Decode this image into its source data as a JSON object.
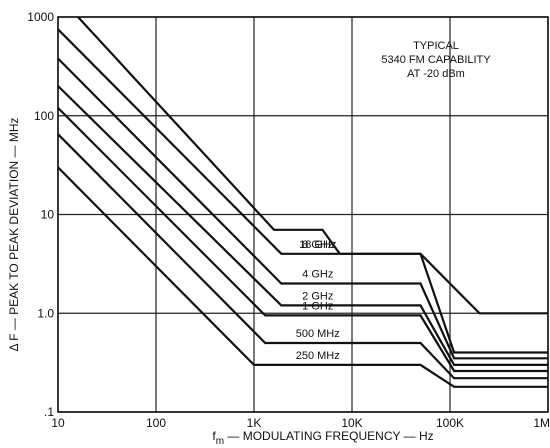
{
  "chart_data": {
    "type": "line",
    "xlabel": "f",
    "xlabel_sub": "m",
    "xlabel_rest": " — MODULATING FREQUENCY — Hz",
    "ylabel": "Δ F — PEAK TO PEAK DEVIATION — MHz",
    "x_scale": "log",
    "y_scale": "log",
    "xlim": [
      10,
      1000000
    ],
    "ylim": [
      0.1,
      1000
    ],
    "grid": true,
    "x_ticks": [
      {
        "value": 10,
        "label": "10"
      },
      {
        "value": 100,
        "label": "100"
      },
      {
        "value": 1000,
        "label": "1K"
      },
      {
        "value": 10000,
        "label": "10K"
      },
      {
        "value": 100000,
        "label": "100K"
      },
      {
        "value": 1000000,
        "label": "1M"
      }
    ],
    "y_ticks": [
      {
        "value": 0.1,
        "label": ".1"
      },
      {
        "value": 1,
        "label": "1.0"
      },
      {
        "value": 10,
        "label": "10"
      },
      {
        "value": 100,
        "label": "100"
      },
      {
        "value": 1000,
        "label": "1000"
      }
    ],
    "annotation": [
      "TYPICAL",
      "5340 FM CAPABILITY",
      "AT -20 dBm"
    ],
    "series": [
      {
        "name": "18 GHz",
        "points": [
          [
            16,
            1000
          ],
          [
            1600,
            7
          ],
          [
            5000,
            7
          ],
          [
            7500,
            4
          ],
          [
            50000,
            4
          ],
          [
            200000,
            1
          ],
          [
            1000000,
            1
          ]
        ]
      },
      {
        "name": "8 GHz",
        "points": [
          [
            10,
            750
          ],
          [
            1900,
            4
          ],
          [
            50000,
            4
          ],
          [
            110000,
            0.4
          ],
          [
            1000000,
            0.4
          ]
        ]
      },
      {
        "name": "4 GHz",
        "points": [
          [
            10,
            380
          ],
          [
            1900,
            2
          ],
          [
            50000,
            2
          ],
          [
            110000,
            0.35
          ],
          [
            1000000,
            0.35
          ]
        ]
      },
      {
        "name": "2 GHz",
        "points": [
          [
            10,
            200
          ],
          [
            1900,
            1.2
          ],
          [
            50000,
            1.2
          ],
          [
            110000,
            0.3
          ],
          [
            1000000,
            0.3
          ]
        ]
      },
      {
        "name": "1 GHz",
        "points": [
          [
            10,
            120
          ],
          [
            1300,
            0.95
          ],
          [
            50000,
            0.95
          ],
          [
            110000,
            0.26
          ],
          [
            1000000,
            0.26
          ]
        ]
      },
      {
        "name": "500 MHz",
        "points": [
          [
            10,
            65
          ],
          [
            1300,
            0.5
          ],
          [
            50000,
            0.5
          ],
          [
            110000,
            0.22
          ],
          [
            1000000,
            0.22
          ]
        ]
      },
      {
        "name": "250 MHz",
        "points": [
          [
            10,
            30
          ],
          [
            1000,
            0.3
          ],
          [
            50000,
            0.3
          ],
          [
            110000,
            0.18
          ],
          [
            1000000,
            0.18
          ]
        ]
      }
    ]
  }
}
